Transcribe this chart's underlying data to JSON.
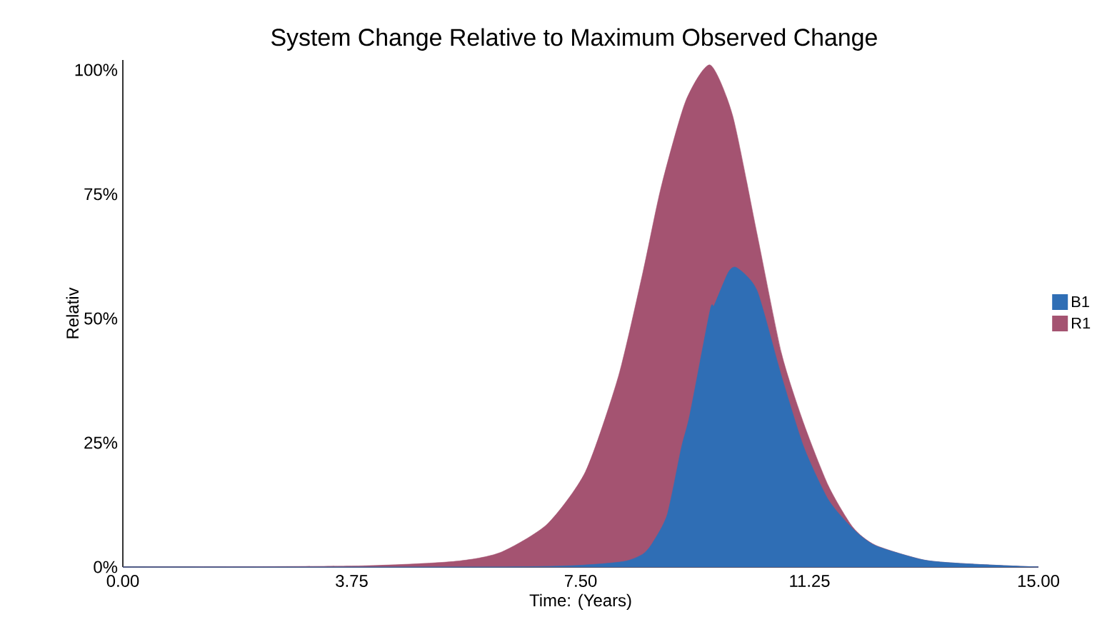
{
  "chart_data": {
    "type": "area",
    "title": "System Change Relative to Maximum Observed Change",
    "xlabel": "Time: (Years)",
    "ylabel": "Relativ",
    "xlim": [
      0,
      15
    ],
    "ylim": [
      0,
      102
    ],
    "xticks": [
      {
        "value": 0,
        "label": "0.00"
      },
      {
        "value": 3.75,
        "label": "3.75"
      },
      {
        "value": 7.5,
        "label": "7.50"
      },
      {
        "value": 11.25,
        "label": "11.25"
      },
      {
        "value": 15,
        "label": "15.00"
      }
    ],
    "yticks": [
      {
        "value": 0,
        "label": "0%"
      },
      {
        "value": 25,
        "label": "25%"
      },
      {
        "value": 50,
        "label": "50%"
      },
      {
        "value": 75,
        "label": "75%"
      },
      {
        "value": 100,
        "label": "100%"
      }
    ],
    "legend": "right",
    "grid": false,
    "series": [
      {
        "name": "B1",
        "color": "#2f6eb5",
        "x": [
          0,
          6,
          7.4,
          8.2,
          8.52,
          8.68,
          8.92,
          9.15,
          9.29,
          9.62,
          9.69,
          9.92,
          10.06,
          10.39,
          10.79,
          11.16,
          11.56,
          11.96,
          12.33,
          13.13,
          13.9,
          15
        ],
        "values": [
          0,
          0,
          0.3,
          1.1,
          2.6,
          4.9,
          10.6,
          24,
          30.7,
          51.6,
          52.7,
          59.3,
          60.2,
          55.6,
          38.4,
          24,
          13.5,
          7.7,
          4.3,
          1.4,
          0.6,
          0
        ]
      },
      {
        "name": "R1",
        "color": "#a45371",
        "x": [
          0,
          3.75,
          5.41,
          6.18,
          6.95,
          7.58,
          8.12,
          8.52,
          8.82,
          9.22,
          9.62,
          9.99,
          10.39,
          10.79,
          11.16,
          11.56,
          11.96,
          12.33,
          13.13,
          13.9,
          15
        ],
        "values": [
          0,
          0.2,
          1.1,
          2.9,
          8.6,
          19.2,
          38.4,
          59.3,
          76.5,
          93.7,
          101,
          90.8,
          67,
          43,
          28.7,
          16.3,
          8,
          4.4,
          1.4,
          0.6,
          0
        ]
      }
    ]
  }
}
